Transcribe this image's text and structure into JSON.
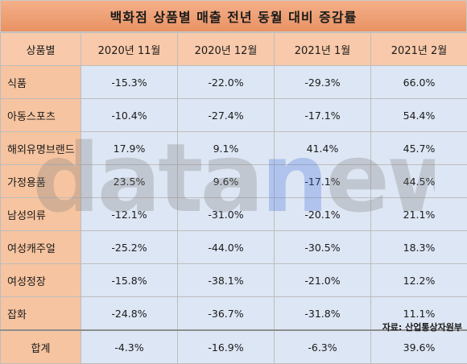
{
  "title": "백화점 상품별 매출 전년 동월 대비 증감률",
  "columns": [
    "상품별",
    "2020년 11월",
    "2020년 12월",
    "2021년 1월",
    "2021년 2월"
  ],
  "rows": [
    {
      "label": "식품",
      "values": [
        "-15.3%",
        "-22.0%",
        "-29.3%",
        "66.0%"
      ]
    },
    {
      "label": "아동스포츠",
      "values": [
        "-10.4%",
        "-27.4%",
        "-17.1%",
        "54.4%"
      ]
    },
    {
      "label": "해외유명브랜드",
      "values": [
        "17.9%",
        "9.1%",
        "41.4%",
        "45.7%"
      ]
    },
    {
      "label": "가정용품",
      "values": [
        "23.5%",
        "9.6%",
        "-17.1%",
        "44.5%"
      ]
    },
    {
      "label": "남성의류",
      "values": [
        "-12.1%",
        "-31.0%",
        "-20.1%",
        "21.1%"
      ]
    },
    {
      "label": "여성캐주얼",
      "values": [
        "-25.2%",
        "-44.0%",
        "-30.5%",
        "18.3%"
      ]
    },
    {
      "label": "여성정장",
      "values": [
        "-15.8%",
        "-38.1%",
        "-21.0%",
        "12.2%"
      ]
    },
    {
      "label": "잡화",
      "values": [
        "-24.8%",
        "-36.7%",
        "-31.8%",
        "11.1%"
      ]
    },
    {
      "label": "합계",
      "values": [
        "-4.3%",
        "-16.9%",
        "-6.3%",
        "39.6%"
      ]
    }
  ],
  "watermark": {
    "text": "datanews",
    "color": "#7a7a7a",
    "accent_color": "#3f6ad8"
  },
  "source": "자료: 산업통상자원부"
}
